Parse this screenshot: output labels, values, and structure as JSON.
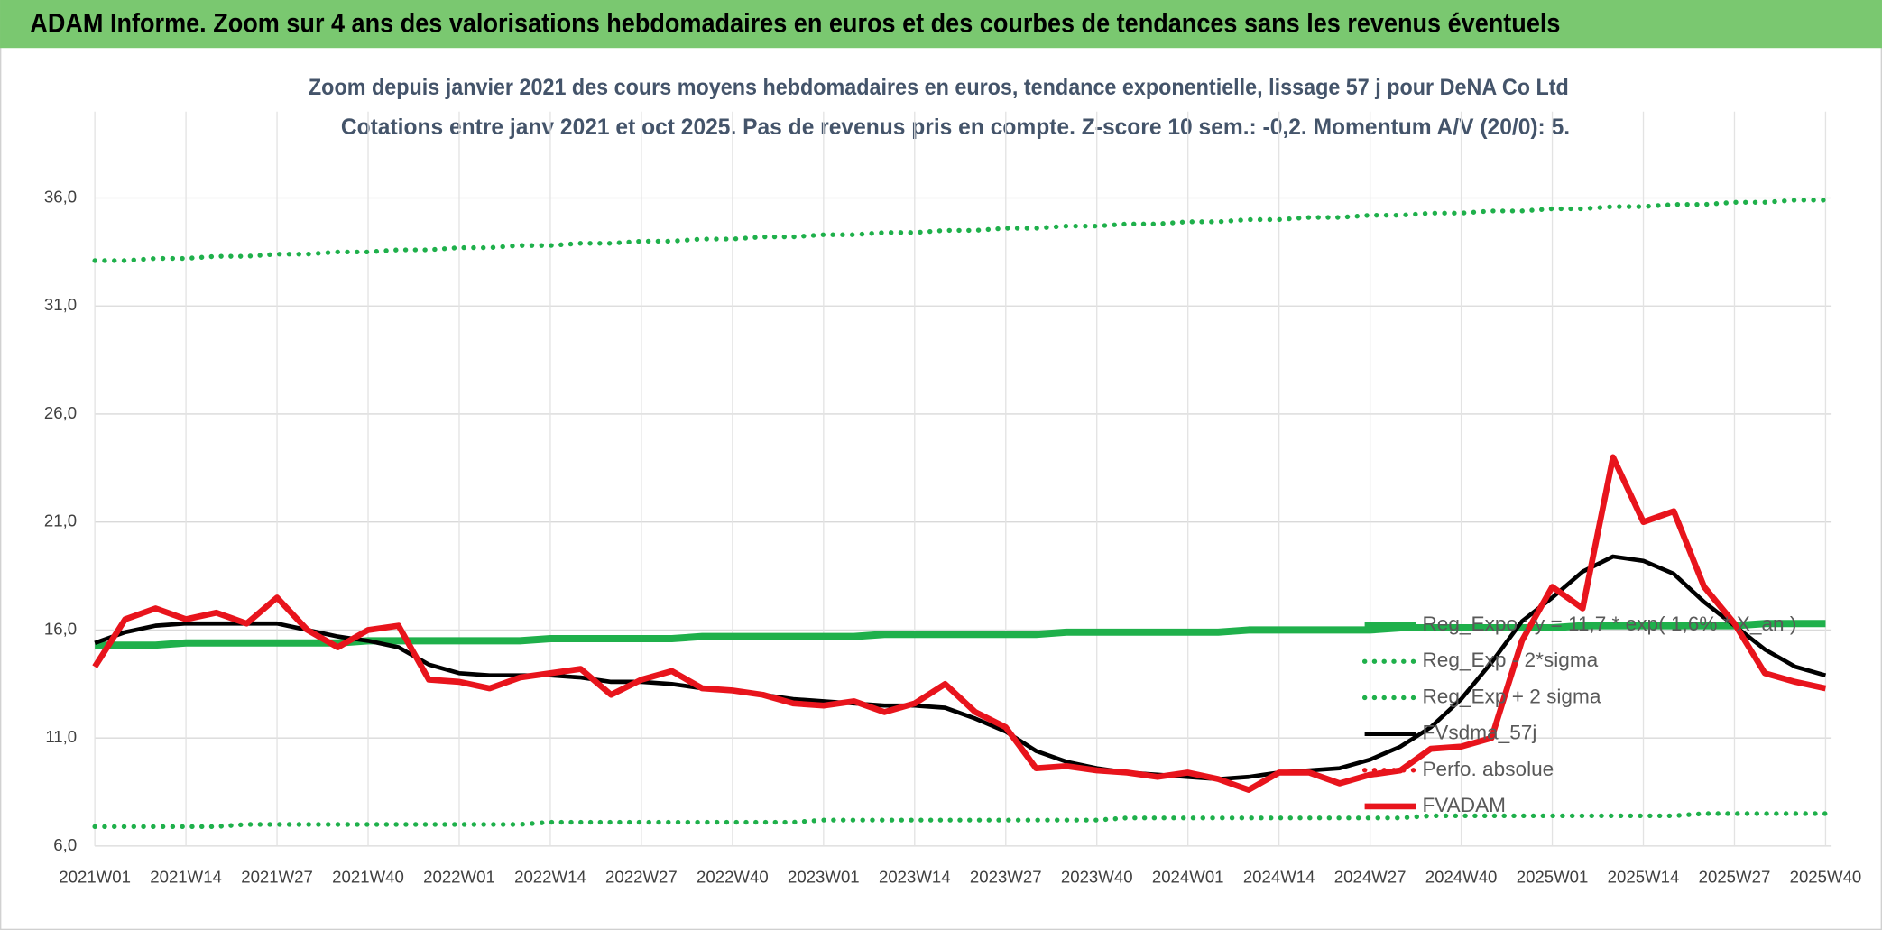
{
  "chart_data": {
    "type": "line",
    "header": "ADAM Informe. Zoom sur 4 ans des valorisations hebdomadaires en euros et des courbes de tendances sans les revenus éventuels",
    "title": "Zoom depuis janvier 2021 des cours moyens hebdomadaires en euros, tendance exponentielle, lissage 57 j pour DeNA Co Ltd",
    "subtitle": "Cotations entre janv 2021 et oct 2025. Pas de revenus pris en compte. Z-score 10 sem.: -0,2. Momentum A/V (20/0): 5.",
    "categories": [
      "2021W01",
      null,
      null,
      "2021W14",
      null,
      null,
      "2021W27",
      null,
      null,
      "2021W40",
      null,
      null,
      "2022W01",
      null,
      null,
      "2022W14",
      null,
      null,
      "2022W27",
      null,
      null,
      "2022W40",
      null,
      null,
      "2023W01",
      null,
      null,
      "2023W14",
      null,
      null,
      "2023W27",
      null,
      null,
      "2023W40",
      null,
      null,
      "2024W01",
      null,
      null,
      "2024W14",
      null,
      null,
      "2024W27",
      null,
      null,
      "2024W40",
      null,
      null,
      "2025W01",
      null,
      null,
      "2025W14",
      null,
      null,
      "2025W27",
      null,
      null,
      "2025W40"
    ],
    "ylim": [
      6,
      40
    ],
    "yticks": [
      {
        "value": 6,
        "label": "6,0"
      },
      {
        "value": 11,
        "label": "11,0"
      },
      {
        "value": 16,
        "label": "16,0"
      },
      {
        "value": 21,
        "label": "21,0"
      },
      {
        "value": 26,
        "label": "26,0"
      },
      {
        "value": 31,
        "label": "31,0"
      },
      {
        "value": 36,
        "label": "36,0"
      }
    ],
    "grid": true,
    "series": [
      {
        "name": "Reg_Expo : y = 11,7 * exp( 1,6% * X_an )",
        "color": "#1fb04b",
        "style": "solid",
        "width": 6,
        "values": [
          15.3,
          15.3,
          15.3,
          15.4,
          15.4,
          15.4,
          15.4,
          15.4,
          15.4,
          15.5,
          15.5,
          15.5,
          15.5,
          15.5,
          15.5,
          15.6,
          15.6,
          15.6,
          15.6,
          15.6,
          15.7,
          15.7,
          15.7,
          15.7,
          15.7,
          15.7,
          15.8,
          15.8,
          15.8,
          15.8,
          15.8,
          15.8,
          15.9,
          15.9,
          15.9,
          15.9,
          15.9,
          15.9,
          16.0,
          16.0,
          16.0,
          16.0,
          16.0,
          16.1,
          16.1,
          16.1,
          16.1,
          16.1,
          16.1,
          16.2,
          16.2,
          16.2,
          16.2,
          16.2,
          16.2,
          16.3,
          16.3,
          16.3
        ]
      },
      {
        "name": "Reg_Exp - 2*sigma",
        "color": "#1fb04b",
        "style": "dotted",
        "width": 4,
        "values": [
          6.9,
          6.9,
          6.9,
          6.9,
          6.9,
          7.0,
          7.0,
          7.0,
          7.0,
          7.0,
          7.0,
          7.0,
          7.0,
          7.0,
          7.0,
          7.1,
          7.1,
          7.1,
          7.1,
          7.1,
          7.1,
          7.1,
          7.1,
          7.1,
          7.2,
          7.2,
          7.2,
          7.2,
          7.2,
          7.2,
          7.2,
          7.2,
          7.2,
          7.2,
          7.3,
          7.3,
          7.3,
          7.3,
          7.3,
          7.3,
          7.3,
          7.3,
          7.3,
          7.3,
          7.4,
          7.4,
          7.4,
          7.4,
          7.4,
          7.4,
          7.4,
          7.4,
          7.4,
          7.5,
          7.5,
          7.5,
          7.5,
          7.5
        ]
      },
      {
        "name": "Reg_Exp + 2 sigma",
        "color": "#1fb04b",
        "style": "dotted",
        "width": 4,
        "values": [
          33.1,
          33.1,
          33.2,
          33.2,
          33.3,
          33.3,
          33.4,
          33.4,
          33.5,
          33.5,
          33.6,
          33.6,
          33.7,
          33.7,
          33.8,
          33.8,
          33.9,
          33.9,
          34.0,
          34.0,
          34.1,
          34.1,
          34.2,
          34.2,
          34.3,
          34.3,
          34.4,
          34.4,
          34.5,
          34.5,
          34.6,
          34.6,
          34.7,
          34.7,
          34.8,
          34.8,
          34.9,
          34.9,
          35.0,
          35.0,
          35.1,
          35.1,
          35.2,
          35.2,
          35.3,
          35.3,
          35.4,
          35.4,
          35.5,
          35.5,
          35.6,
          35.6,
          35.7,
          35.7,
          35.8,
          35.8,
          35.9,
          35.9
        ]
      },
      {
        "name": "FVsdma_57j",
        "color": "#000000",
        "style": "solid",
        "width": 3.5,
        "values": [
          15.4,
          15.9,
          16.2,
          16.3,
          16.3,
          16.3,
          16.3,
          16.0,
          15.7,
          15.5,
          15.2,
          14.4,
          14.0,
          13.9,
          13.9,
          13.9,
          13.8,
          13.6,
          13.6,
          13.5,
          13.3,
          13.2,
          13.0,
          12.8,
          12.7,
          12.6,
          12.5,
          12.5,
          12.4,
          11.9,
          11.3,
          10.4,
          9.9,
          9.6,
          9.4,
          9.3,
          9.2,
          9.1,
          9.2,
          9.4,
          9.5,
          9.6,
          10.0,
          10.6,
          11.5,
          12.8,
          14.5,
          16.4,
          17.5,
          18.7,
          19.4,
          19.2,
          18.6,
          17.3,
          16.2,
          15.1,
          14.3,
          13.9
        ]
      },
      {
        "name": "Perfo. absolue",
        "color": "#e8141c",
        "style": "dotted",
        "width": 4
      },
      {
        "name": "FVADAM",
        "color": "#e8141c",
        "style": "solid",
        "width": 5,
        "values": [
          14.3,
          16.5,
          17.0,
          16.5,
          16.8,
          16.3,
          17.5,
          16.0,
          15.2,
          16.0,
          16.2,
          13.7,
          13.6,
          13.3,
          13.8,
          14.0,
          14.2,
          13.0,
          13.7,
          14.1,
          13.3,
          13.2,
          13.0,
          12.6,
          12.5,
          12.7,
          12.2,
          12.6,
          13.5,
          12.2,
          11.5,
          9.6,
          9.7,
          9.5,
          9.4,
          9.2,
          9.4,
          9.1,
          8.6,
          9.4,
          9.4,
          8.9,
          9.3,
          9.5,
          10.5,
          10.6,
          11.0,
          15.5,
          18.0,
          17.0,
          24.0,
          21.0,
          21.5,
          18.0,
          16.3,
          14.0,
          13.6,
          13.3
        ]
      }
    ]
  }
}
